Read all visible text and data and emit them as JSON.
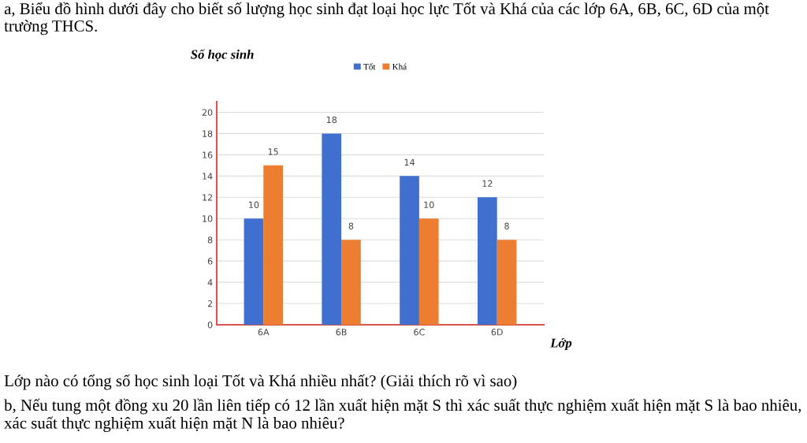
{
  "chart_data": {
    "type": "bar",
    "title": "a, Biểu đồ hình dưới đây cho biết số lượng học sinh đạt loại học lực Tốt và Khá của các lớp 6A, 6B, 6C, 6D của một trường THCS.",
    "ylabel": "Số học sinh",
    "xlabel": "Lớp",
    "categories": [
      "6A",
      "6B",
      "6C",
      "6D"
    ],
    "series": [
      {
        "name": "Tốt",
        "color": "#3f6fcf",
        "values": [
          10,
          18,
          14,
          12
        ]
      },
      {
        "name": "Khá",
        "color": "#ed7d31",
        "values": [
          15,
          8,
          10,
          8
        ]
      }
    ],
    "ylim": [
      0,
      21
    ],
    "yticks": [
      0,
      2,
      4,
      6,
      8,
      10,
      12,
      14,
      16,
      18,
      20
    ],
    "grid": "y",
    "legend": "top",
    "data_labels": true,
    "annotations": [
      "Lớp nào có tổng số học sinh loại Tốt và Khá nhiều nhất? (Giải thích rõ vì sao)",
      "b, Nếu tung một đồng xu 20 lần liên tiếp có 12 lần xuất hiện mặt S thì xác suất thực nghiệm xuất hiện mặt S là bao nhiêu, xác suất thực nghiệm xuất hiện mặt N là bao nhiêu?"
    ]
  }
}
